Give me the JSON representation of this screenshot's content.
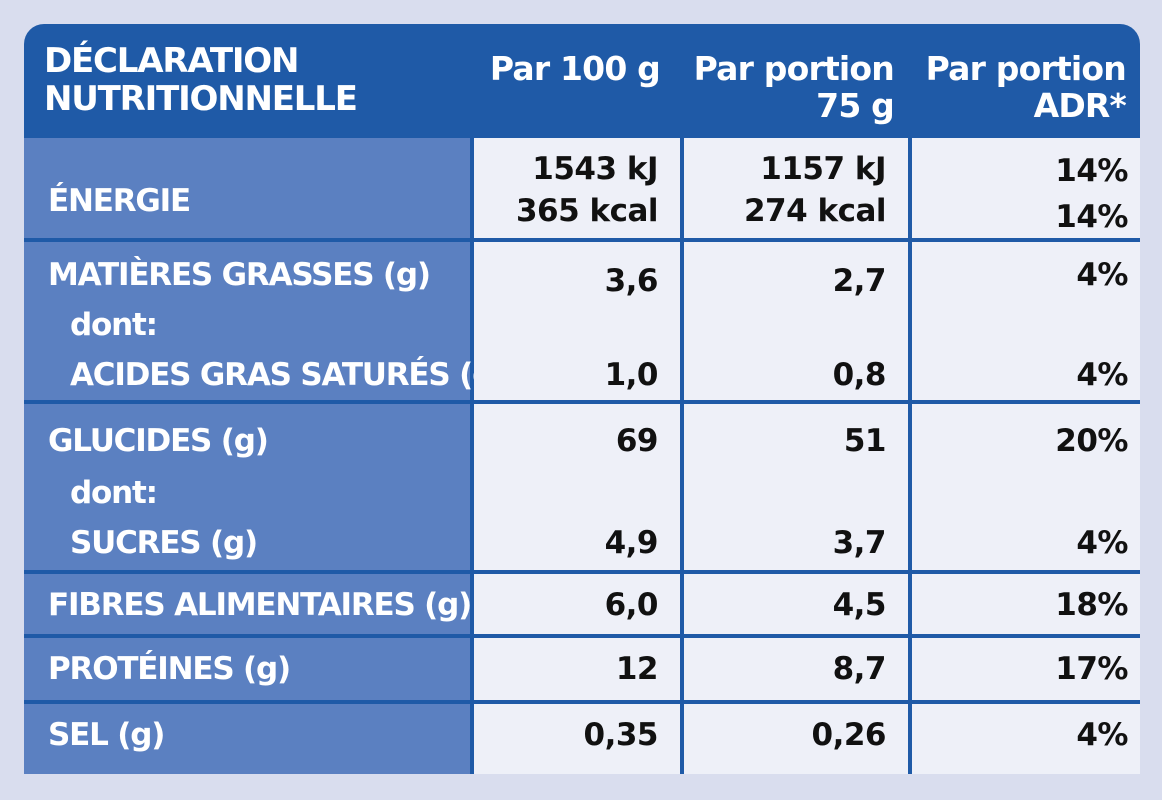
{
  "header": {
    "title_line1": "DÉCLARATION",
    "title_line2": "NUTRITIONNELLE",
    "col1_line1": "Par 100 g",
    "col2_line1": "Par portion",
    "col2_line2": "75 g",
    "col3_line1": "Par portion",
    "col3_line2": "ADR*"
  },
  "rows": {
    "energie": {
      "label": "ÉNERGIE",
      "per100_kj": "1543 kJ",
      "per100_kcal": "365 kcal",
      "portion_kj": "1157 kJ",
      "portion_kcal": "274 kcal",
      "adr_kj": "14%",
      "adr_kcal": "14%"
    },
    "matieres": {
      "label": "MATIÈRES GRASSES (g)",
      "per100": "3,6",
      "portion": "2,7",
      "adr": "4%",
      "dont": "dont:",
      "sub_label": "ACIDES GRAS SATURÉS (g)",
      "sub_per100": "1,0",
      "sub_portion": "0,8",
      "sub_adr": "4%"
    },
    "glucides": {
      "label": "GLUCIDES (g)",
      "per100": "69",
      "portion": "51",
      "adr": "20%",
      "dont": "dont:",
      "sub_label": "SUCRES (g)",
      "sub_per100": "4,9",
      "sub_portion": "3,7",
      "sub_adr": "4%"
    },
    "fibres": {
      "label": "FIBRES ALIMENTAIRES (g)",
      "per100": "6,0",
      "portion": "4,5",
      "adr": "18%"
    },
    "proteines": {
      "label": "PROTÉINES (g)",
      "per100": "12",
      "portion": "8,7",
      "adr": "17%"
    },
    "sel": {
      "label": "SEL (g)",
      "per100": "0,35",
      "portion": "0,26",
      "adr": "4%"
    }
  }
}
